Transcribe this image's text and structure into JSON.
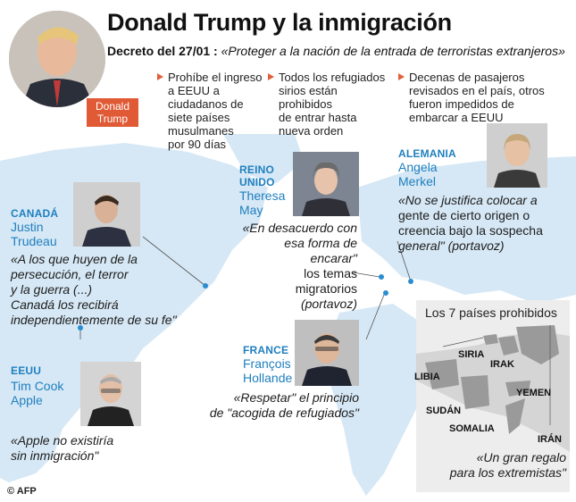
{
  "title": "Donald Trump y la inmigración",
  "decree": {
    "label": "Decreto del 27/01 :",
    "quote": "«Proteger a la nación de la entrada de terroristas extranjeros»"
  },
  "trump": {
    "tag_first": "Donald",
    "tag_last": "Trump"
  },
  "bullets": [
    {
      "lines": [
        "Prohíbe el ingreso",
        "a EEUU a",
        "ciudadanos de",
        "siete países",
        "musulmanes",
        "por 90 días"
      ]
    },
    {
      "lines": [
        "Todos los refugiados",
        "sirios están",
        "prohibidos",
        "de entrar hasta",
        "nueva orden"
      ]
    },
    {
      "lines": [
        "Decenas de pasajeros",
        "revisados en el país, otros",
        "fueron impedidos de",
        "embarcar a EEUU"
      ]
    }
  ],
  "canada": {
    "country": "CANADÁ",
    "first": "Justin",
    "last": "Trudeau",
    "quote": [
      "«A los que huyen de la",
      "persecución, el terror",
      "y la guerra (...)",
      "Canadá los recibirá",
      "independientemente de su fe\""
    ]
  },
  "usa": {
    "country": "EEUU",
    "first": "Tim Cook",
    "last": "Apple",
    "quote": [
      "«Apple no existiría",
      "sin inmigración\""
    ]
  },
  "uk": {
    "country1": "REINO",
    "country2": "UNIDO",
    "first": "Theresa",
    "last": "May",
    "quote": [
      "«En desacuerdo con",
      "esa forma de encarar\"",
      "los temas migratorios",
      "(portavoz)"
    ]
  },
  "germany": {
    "country": "ALEMANIA",
    "first": "Angela",
    "last": "Merkel",
    "quote": [
      "«No se justifica colocar a",
      "gente de cierto origen o",
      "creencia bajo la sospecha",
      "general\" (portavoz)"
    ]
  },
  "france": {
    "country": "FRANCE",
    "first": "François",
    "last": "Hollande",
    "quote": [
      "«Respetar\" el principio",
      "de \"acogida de refugiados\""
    ]
  },
  "inset": {
    "title": "Los 7 países prohibidos",
    "countries": [
      "SIRIA",
      "IRAK",
      "LIBIA",
      "YEMEN",
      "SUDÁN",
      "SOMALIA",
      "IRÁN"
    ],
    "quote": [
      "«Un gran regalo",
      "para los extremistas\""
    ]
  },
  "credit": "© AFP",
  "colors": {
    "accent": "#e05a35",
    "blue": "#1f7fbf",
    "map": "#cfe3f2"
  }
}
